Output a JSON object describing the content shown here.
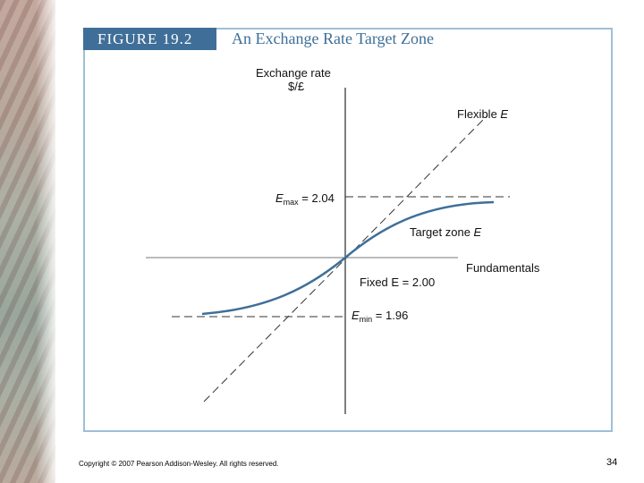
{
  "figure": {
    "tag": "FIGURE 19.2",
    "title": "An Exchange Rate Target Zone"
  },
  "diagram": {
    "y_axis_label_line1": "Exchange rate",
    "y_axis_label_line2": "$/£",
    "x_axis_label": "Fundamentals",
    "flexible_label": "Flexible ",
    "flexible_var": "E",
    "target_zone_label": "Target zone ",
    "target_zone_var": "E",
    "fixed_label": "Fixed E = 2.00",
    "emax_var": "E",
    "emax_sub": "max",
    "emax_value": " = 2.04",
    "emin_var": "E",
    "emin_sub": "min",
    "emin_value": " = 1.96",
    "colors": {
      "curve": "#3f6f98",
      "axis": "#555555",
      "dashed": "#333333",
      "tag_bg": "#3f6f98",
      "frame": "#9fbfd9"
    }
  },
  "footer": {
    "copyright": "Copyright © 2007 Pearson Addison-Wesley. All rights reserved.",
    "page_number": "34"
  }
}
